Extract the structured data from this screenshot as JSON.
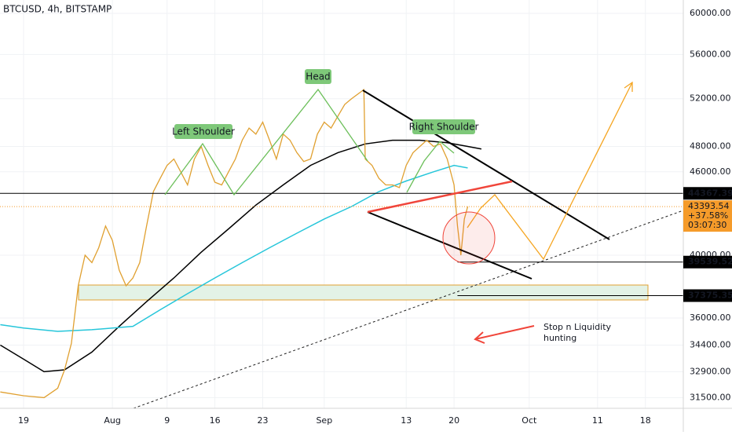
{
  "chart_data": {
    "type": "line",
    "title": "BTCUSD, 4h, BITSTAMP",
    "x": [
      -3.4,
      0,
      3,
      5,
      6,
      7,
      8,
      9,
      10,
      11,
      12,
      13,
      14,
      15,
      16,
      17,
      18,
      19,
      20,
      21,
      22,
      23,
      24,
      25,
      26,
      27,
      28,
      29,
      30,
      31,
      32,
      33,
      34,
      35,
      36,
      37,
      38,
      39,
      40,
      41,
      42,
      43,
      44,
      45,
      46,
      47,
      48,
      49.8,
      50,
      51,
      52,
      53,
      54,
      55,
      56,
      57,
      58,
      59,
      60,
      61,
      62,
      63,
      63.5,
      64,
      64.5,
      65
    ],
    "series": [
      {
        "name": "BTCUSD",
        "color": "#e0a030",
        "values": [
          31800,
          31600,
          31500,
          32000,
          33000,
          34500,
          38000,
          40000,
          39500,
          40500,
          42000,
          41000,
          39000,
          38000,
          38500,
          39500,
          42000,
          44500,
          45500,
          46500,
          47000,
          46000,
          45000,
          47000,
          48000,
          46500,
          45200,
          45000,
          46000,
          47000,
          48500,
          49500,
          49000,
          50000,
          48500,
          47000,
          49000,
          48500,
          47500,
          46800,
          47000,
          49000,
          50000,
          49500,
          50500,
          51500,
          52000,
          52800,
          47000,
          46500,
          45500,
          45000,
          45000,
          44800,
          46500,
          47500,
          48000,
          48500,
          48000,
          48200,
          47000,
          45000,
          42000,
          40000,
          42500,
          43393.54
        ]
      }
    ],
    "averages": [
      {
        "color": "#000000",
        "x": [
          -3.4,
          0,
          3,
          6,
          10,
          14,
          18,
          22,
          26,
          30,
          34,
          38,
          42,
          46,
          50,
          54,
          58,
          62,
          65,
          67
        ],
        "values": [
          34400,
          33600,
          32900,
          33000,
          34000,
          35500,
          37000,
          38500,
          40200,
          41800,
          43500,
          45000,
          46500,
          47500,
          48200,
          48500,
          48500,
          48300,
          48000,
          47800
        ]
      },
      {
        "color": "#26c6da",
        "x": [
          -3.4,
          0,
          5,
          10,
          16,
          20,
          24,
          28,
          32,
          36,
          40,
          44,
          48,
          52,
          56,
          60,
          63,
          65
        ],
        "values": [
          35600,
          35400,
          35200,
          35300,
          35500,
          36500,
          37500,
          38500,
          39500,
          40500,
          41500,
          42500,
          43400,
          44500,
          45300,
          46000,
          46500,
          46300
        ]
      }
    ],
    "xlim": [
      -3.45,
      96.55
    ],
    "xticks": [
      {
        "value": 0,
        "label": "19"
      },
      {
        "value": 13,
        "label": "Aug"
      },
      {
        "value": 21,
        "label": "9"
      },
      {
        "value": 28,
        "label": "16"
      },
      {
        "value": 35,
        "label": "23"
      },
      {
        "value": 44,
        "label": "Sep"
      },
      {
        "value": 56,
        "label": "13"
      },
      {
        "value": 63,
        "label": "20"
      },
      {
        "value": 74,
        "label": "Oct"
      },
      {
        "value": 84,
        "label": "11"
      },
      {
        "value": 91,
        "label": "18"
      }
    ],
    "ylim": [
      30940,
      61360
    ],
    "log_scale": true,
    "yticks": [
      {
        "value": 60000,
        "label": "60000.00"
      },
      {
        "value": 56000,
        "label": "56000.00"
      },
      {
        "value": 52000,
        "label": "52000.00"
      },
      {
        "value": 48000,
        "label": "48000.00"
      },
      {
        "value": 46000,
        "label": "46000.00"
      },
      {
        "value": 40000,
        "label": "40000.00"
      },
      {
        "value": 36000,
        "label": "36000.00"
      },
      {
        "value": 34400,
        "label": "34400.00"
      },
      {
        "value": 32900,
        "label": "32900.00"
      },
      {
        "value": 31500,
        "label": "31500.00"
      }
    ],
    "price_tags": [
      {
        "value": 44367.39,
        "color": "#000000"
      },
      {
        "value": 39539.52,
        "color": "#000000"
      },
      {
        "value": 37375.35,
        "color": "#000000"
      }
    ],
    "last_price": {
      "value": 43393.54,
      "change": "+37.58%",
      "countdown": "03:07:30",
      "color": "#f59b2a"
    },
    "annotations": {
      "left_shoulder": "Left Shoulder",
      "head": "Head",
      "right_shoulder": "Right Shoulder",
      "note_line1": "Stop n Liquidity",
      "note_line2": "hunting"
    }
  }
}
